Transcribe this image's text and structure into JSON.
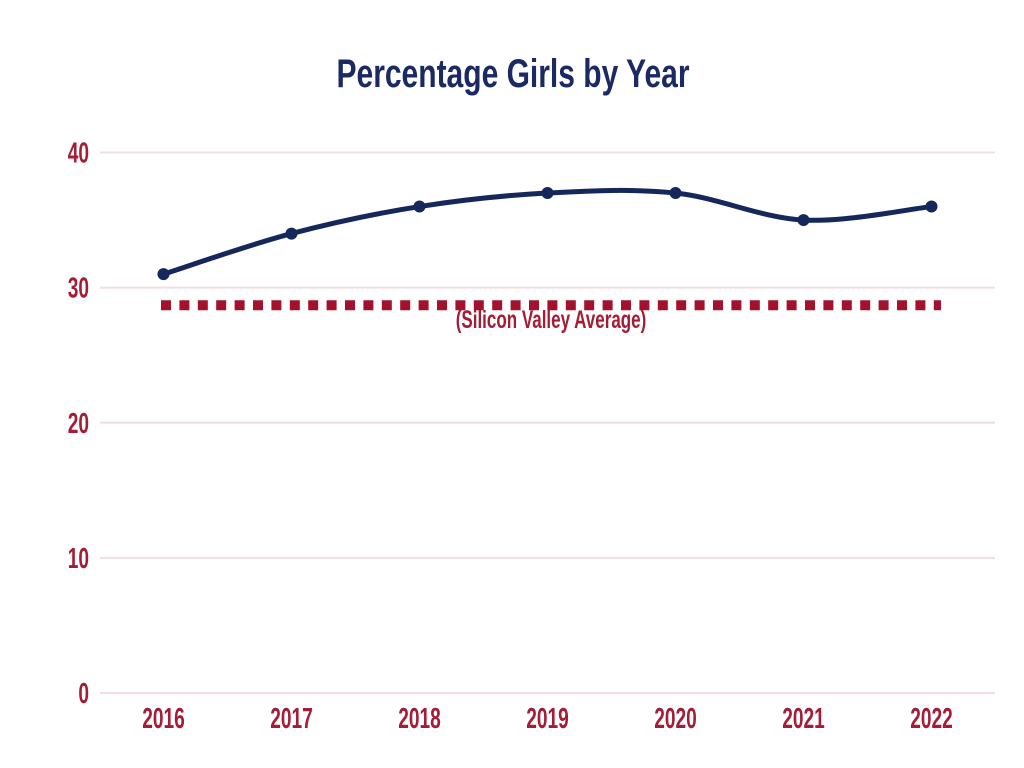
{
  "chart_data": {
    "type": "line",
    "title": "Percentage Girls by Year",
    "categories": [
      "2016",
      "2017",
      "2018",
      "2019",
      "2020",
      "2021",
      "2022"
    ],
    "values": [
      31,
      34,
      36,
      37,
      37,
      35,
      36
    ],
    "reference_line": {
      "value": 28.7,
      "label": "(Silicon Valley Average)"
    },
    "y_ticks": [
      0,
      10,
      20,
      30,
      40
    ],
    "ylim": [
      0,
      40
    ],
    "xlabel": "",
    "ylabel": "",
    "grid": true,
    "legend": false,
    "colors": {
      "title": "#1b2a63",
      "series_line": "#16275c",
      "point_dot": "#16275c",
      "axis_labels": "#a41d37",
      "reference_dash": "#a2122d",
      "gridline": "#f3dde2",
      "background": "#ffffff"
    }
  }
}
